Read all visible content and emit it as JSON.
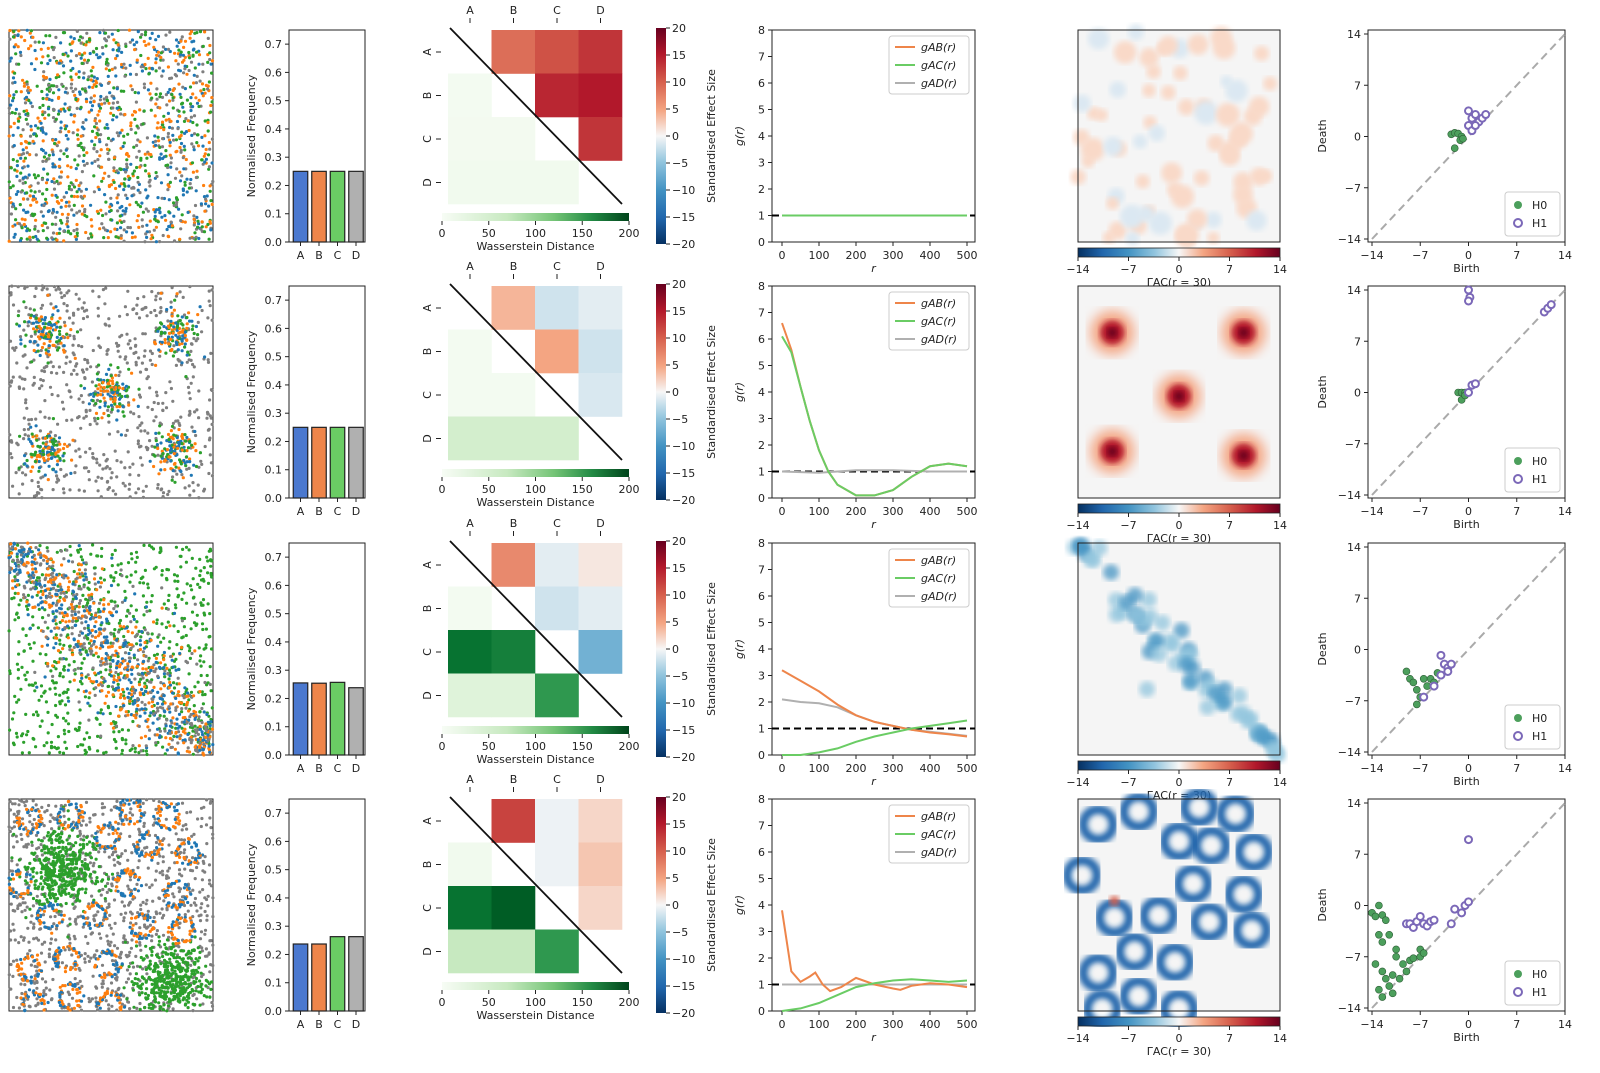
{
  "colors": {
    "A": "#1f77b4",
    "B": "#ff7f0e",
    "C": "#2ca02c",
    "D": "#7f7f7f",
    "barA": "#4a78cf",
    "barB": "#ee854a",
    "barC": "#6acc64",
    "barD": "#b0b0b0",
    "gAB": "#ee854a",
    "gAC": "#6acc64",
    "gAD": "#b0b0b0",
    "h0": "#4c9f5c",
    "h1": "#7b68b8"
  },
  "common": {
    "bar_ylabel": "Normalised Frequency",
    "bar_categories": [
      "A",
      "B",
      "C",
      "D"
    ],
    "bar_yticks": [
      "0.0",
      "0.1",
      "0.2",
      "0.3",
      "0.4",
      "0.5",
      "0.6",
      "0.7"
    ],
    "heat_labels": [
      "A",
      "B",
      "C",
      "D"
    ],
    "heat_cbar_label": "Standardised Effect Size",
    "heat_cbar_ticks": [
      "20",
      "15",
      "10",
      "5",
      "0",
      "−5",
      "−10",
      "−15",
      "−20"
    ],
    "wass_label": "Wasserstein Distance",
    "wass_ticks": [
      "0",
      "50",
      "100",
      "150",
      "200"
    ],
    "g_ylabel": "g(r)",
    "g_xlabel": "r",
    "g_yticks": [
      "0",
      "1",
      "2",
      "3",
      "4",
      "5",
      "6",
      "7",
      "8"
    ],
    "g_xticks": [
      "0",
      "100",
      "200",
      "300",
      "400",
      "500"
    ],
    "g_legend": [
      "gAB(r)",
      "gAC(r)",
      "gAD(r)"
    ],
    "gamma_ticks": [
      "−14",
      "−7",
      "0",
      "7",
      "14"
    ],
    "gamma_label": "ΓAC(r = 30)",
    "pd_xlabel": "Birth",
    "pd_ylabel": "Death",
    "pd_ticks": [
      "−14",
      "−7",
      "0",
      "7",
      "14"
    ],
    "pd_legend": [
      "H0",
      "H1"
    ]
  },
  "chart_data": [
    {
      "type": "scatter",
      "name": "row1-points",
      "pattern": "uniform random",
      "bar": {
        "type": "bar",
        "categories": [
          "A",
          "B",
          "C",
          "D"
        ],
        "values": [
          0.25,
          0.25,
          0.25,
          0.25
        ],
        "ylim": [
          0,
          0.75
        ]
      },
      "heatmap": {
        "type": "heatmap",
        "upper_effect_size": [
          [
            null,
            9,
            11,
            13
          ],
          [
            null,
            null,
            14,
            15
          ],
          [
            null,
            null,
            null,
            13
          ]
        ],
        "lower_wasserstein": [
          [
            null,
            null,
            null
          ],
          [
            5,
            null,
            null
          ],
          [
            6,
            6,
            null
          ],
          [
            8,
            8,
            8
          ]
        ],
        "effect_range": [
          -20,
          20
        ],
        "wasserstein_range": [
          0,
          200
        ]
      },
      "g": {
        "type": "line",
        "xlim": [
          0,
          500
        ],
        "ylim": [
          0,
          8
        ],
        "series": [
          {
            "name": "gAB(r)",
            "x": [
              0,
              100,
              200,
              300,
              400,
              500
            ],
            "values": [
              1,
              1,
              1,
              1,
              1,
              1
            ]
          },
          {
            "name": "gAC(r)",
            "x": [
              0,
              100,
              200,
              300,
              400,
              500
            ],
            "values": [
              1,
              1,
              1,
              1,
              1,
              1
            ]
          },
          {
            "name": "gAD(r)",
            "x": [
              0,
              100,
              200,
              300,
              400,
              500
            ],
            "values": [
              1,
              1,
              1,
              1,
              1,
              1
            ]
          }
        ]
      },
      "gamma": {
        "pattern": "weak noise",
        "range": [
          -14,
          14
        ]
      },
      "pd": {
        "type": "scatter",
        "xlim": [
          -14,
          14
        ],
        "ylim": [
          -14,
          14
        ],
        "h0": [
          [
            -2.5,
            0.3
          ],
          [
            -2,
            0.5
          ],
          [
            -1.5,
            0.4
          ],
          [
            -1,
            0
          ],
          [
            -1.2,
            -0.5
          ],
          [
            -2,
            -1.6
          ],
          [
            -0.8,
            -0.3
          ]
        ],
        "h1": [
          [
            0,
            3.5
          ],
          [
            0.5,
            2.5
          ],
          [
            1,
            3
          ],
          [
            1.5,
            2
          ],
          [
            2,
            2.5
          ],
          [
            0,
            1.5
          ],
          [
            0.5,
            0.8
          ],
          [
            1,
            1.5
          ],
          [
            2.5,
            3
          ]
        ]
      }
    },
    {
      "type": "scatter",
      "name": "row2-points",
      "pattern": "five clusters",
      "bar": {
        "type": "bar",
        "categories": [
          "A",
          "B",
          "C",
          "D"
        ],
        "values": [
          0.25,
          0.25,
          0.25,
          0.25
        ],
        "ylim": [
          0,
          0.75
        ]
      },
      "heatmap": {
        "type": "heatmap",
        "upper_effect_size": [
          [
            null,
            4,
            -2,
            -1
          ],
          [
            null,
            null,
            5,
            -2
          ],
          [
            null,
            null,
            null,
            -1.5
          ]
        ],
        "lower_wasserstein": [
          [
            null,
            null,
            null
          ],
          [
            5,
            null,
            null
          ],
          [
            5,
            5,
            null
          ],
          [
            40,
            40,
            40
          ]
        ],
        "effect_range": [
          -20,
          20
        ],
        "wasserstein_range": [
          0,
          200
        ]
      },
      "g": {
        "type": "line",
        "xlim": [
          0,
          500
        ],
        "ylim": [
          0,
          8
        ],
        "series": [
          {
            "name": "gAB(r)",
            "x": [
              0,
              25,
              50,
              75,
              100,
              125,
              150,
              200,
              250,
              300,
              350,
              400,
              450,
              500
            ],
            "values": [
              6.6,
              5.6,
              4.2,
              2.9,
              1.8,
              1.0,
              0.5,
              0.1,
              0.1,
              0.3,
              0.8,
              1.2,
              1.3,
              1.2
            ]
          },
          {
            "name": "gAC(r)",
            "x": [
              0,
              25,
              50,
              75,
              100,
              125,
              150,
              200,
              250,
              300,
              350,
              400,
              450,
              500
            ],
            "values": [
              6.1,
              5.5,
              4.2,
              2.9,
              1.8,
              1.0,
              0.5,
              0.1,
              0.1,
              0.3,
              0.8,
              1.2,
              1.3,
              1.2
            ]
          },
          {
            "name": "gAD(r)",
            "x": [
              0,
              100,
              200,
              300,
              400,
              500
            ],
            "values": [
              1,
              0.95,
              1.05,
              1.05,
              1.0,
              1.0
            ]
          }
        ]
      },
      "gamma": {
        "pattern": "five red clusters",
        "range": [
          -14,
          14
        ]
      },
      "pd": {
        "type": "scatter",
        "xlim": [
          -14,
          14
        ],
        "ylim": [
          -14,
          14
        ],
        "h0": [
          [
            -1.5,
            0
          ],
          [
            -1,
            0
          ],
          [
            -0.5,
            0
          ],
          [
            -1,
            -1
          ],
          [
            -0.5,
            -0.4
          ]
        ],
        "h1": [
          [
            0,
            14
          ],
          [
            0.2,
            13
          ],
          [
            0,
            12.5
          ],
          [
            11,
            11
          ],
          [
            11.5,
            11.5
          ],
          [
            12,
            12
          ],
          [
            0,
            0
          ],
          [
            0.5,
            1
          ],
          [
            1,
            1.2
          ]
        ]
      }
    },
    {
      "type": "scatter",
      "name": "row3-points",
      "pattern": "diagonal band",
      "bar": {
        "type": "bar",
        "categories": [
          "A",
          "B",
          "C",
          "D"
        ],
        "values": [
          0.255,
          0.254,
          0.257,
          0.238
        ],
        "ylim": [
          0,
          0.75
        ]
      },
      "heatmap": {
        "type": "heatmap",
        "upper_effect_size": [
          [
            null,
            7,
            -1,
            1
          ],
          [
            null,
            null,
            -2,
            -1
          ],
          [
            null,
            null,
            null,
            -7
          ]
        ],
        "lower_wasserstein": [
          [
            null,
            null,
            null
          ],
          [
            5,
            null,
            null
          ],
          [
            170,
            160,
            null
          ],
          [
            30,
            30,
            140
          ]
        ],
        "effect_range": [
          -20,
          20
        ],
        "wasserstein_range": [
          0,
          200
        ]
      },
      "g": {
        "type": "line",
        "xlim": [
          0,
          500
        ],
        "ylim": [
          0,
          8
        ],
        "series": [
          {
            "name": "gAB(r)",
            "x": [
              0,
              50,
              100,
              150,
              200,
              250,
              300,
              350,
              400,
              450,
              500
            ],
            "values": [
              3.2,
              2.8,
              2.4,
              1.9,
              1.5,
              1.25,
              1.1,
              0.95,
              0.85,
              0.78,
              0.7
            ]
          },
          {
            "name": "gAC(r)",
            "x": [
              0,
              50,
              100,
              150,
              200,
              250,
              300,
              350,
              400,
              450,
              500
            ],
            "values": [
              0,
              0,
              0.1,
              0.25,
              0.5,
              0.7,
              0.85,
              1.0,
              1.1,
              1.2,
              1.3
            ]
          },
          {
            "name": "gAD(r)",
            "x": [
              0,
              50,
              100,
              150,
              200,
              250,
              300,
              350,
              400,
              450,
              500
            ],
            "values": [
              2.1,
              2.0,
              1.95,
              1.8,
              1.5,
              1.25,
              1.1,
              0.95,
              0.88,
              0.8,
              0.72
            ]
          }
        ]
      },
      "gamma": {
        "pattern": "blue diagonal band",
        "range": [
          -14,
          14
        ]
      },
      "pd": {
        "type": "scatter",
        "xlim": [
          -14,
          14
        ],
        "ylim": [
          -14,
          14
        ],
        "h0": [
          [
            -9,
            -3
          ],
          [
            -8.5,
            -4
          ],
          [
            -8,
            -4.5
          ],
          [
            -7.5,
            -5.5
          ],
          [
            -7,
            -6.5
          ],
          [
            -7.5,
            -7.5
          ],
          [
            -6.5,
            -4
          ],
          [
            -6,
            -5
          ],
          [
            -5.5,
            -4
          ],
          [
            -5,
            -4.5
          ],
          [
            -4.5,
            -3.2
          ]
        ],
        "h1": [
          [
            -4,
            -0.8
          ],
          [
            -3.5,
            -2
          ],
          [
            -3,
            -2.5
          ],
          [
            -2.5,
            -2
          ],
          [
            -4,
            -3.5
          ],
          [
            -5,
            -5
          ],
          [
            -6.5,
            -6.5
          ],
          [
            -3,
            -3
          ]
        ]
      }
    },
    {
      "type": "scatter",
      "name": "row4-points",
      "pattern": "rings and two green blobs",
      "bar": {
        "type": "bar",
        "categories": [
          "A",
          "B",
          "C",
          "D"
        ],
        "values": [
          0.237,
          0.237,
          0.263,
          0.263
        ],
        "ylim": [
          0,
          0.75
        ]
      },
      "heatmap": {
        "type": "heatmap",
        "upper_effect_size": [
          [
            null,
            12,
            -0.5,
            2
          ],
          [
            null,
            null,
            -0.5,
            3
          ],
          [
            null,
            null,
            null,
            2
          ]
        ],
        "lower_wasserstein": [
          [
            null,
            null,
            null
          ],
          [
            8,
            null,
            null
          ],
          [
            170,
            185,
            null
          ],
          [
            50,
            50,
            140
          ]
        ],
        "effect_range": [
          -20,
          20
        ],
        "wasserstein_range": [
          0,
          200
        ]
      },
      "g": {
        "type": "line",
        "xlim": [
          0,
          500
        ],
        "ylim": [
          0,
          8
        ],
        "series": [
          {
            "name": "gAB(r)",
            "x": [
              0,
              25,
              50,
              75,
              90,
              110,
              130,
              160,
              200,
              250,
              300,
              320,
              350,
              400,
              450,
              500
            ],
            "values": [
              3.8,
              1.5,
              1.1,
              1.3,
              1.45,
              1.0,
              0.75,
              0.9,
              1.25,
              1.0,
              0.85,
              0.8,
              0.95,
              1.05,
              1.0,
              0.9
            ]
          },
          {
            "name": "gAC(r)",
            "x": [
              0,
              50,
              100,
              150,
              200,
              250,
              300,
              350,
              400,
              450,
              500
            ],
            "values": [
              0,
              0.1,
              0.3,
              0.6,
              0.9,
              1.05,
              1.15,
              1.2,
              1.15,
              1.1,
              1.15
            ]
          },
          {
            "name": "gAD(r)",
            "x": [
              0,
              100,
              200,
              300,
              400,
              500
            ],
            "values": [
              1,
              1,
              1,
              1,
              1,
              1
            ]
          }
        ]
      },
      "gamma": {
        "pattern": "blue rings",
        "range": [
          -14,
          14
        ]
      },
      "pd": {
        "type": "scatter",
        "xlim": [
          -14,
          14
        ],
        "ylim": [
          -14,
          14
        ],
        "h0": [
          [
            -14,
            -1
          ],
          [
            -13.5,
            -1.5
          ],
          [
            -13,
            0
          ],
          [
            -12.5,
            -1.3
          ],
          [
            -12,
            -2
          ],
          [
            -13,
            -4
          ],
          [
            -12.5,
            -5
          ],
          [
            -11.5,
            -4
          ],
          [
            -10.5,
            -6
          ],
          [
            -10.5,
            -7
          ],
          [
            -9.5,
            -8
          ],
          [
            -9,
            -9
          ],
          [
            -8.5,
            -7.5
          ],
          [
            -8,
            -7.2
          ],
          [
            -7,
            -6
          ],
          [
            -7,
            -7
          ],
          [
            -6.5,
            -6.5
          ],
          [
            -13.5,
            -8
          ],
          [
            -12.5,
            -9
          ],
          [
            -12,
            -10
          ],
          [
            -11.5,
            -11
          ],
          [
            -13,
            -11.5
          ],
          [
            -12.5,
            -12.5
          ],
          [
            -11,
            -12
          ],
          [
            -11,
            -9.5
          ],
          [
            -10,
            -10
          ]
        ],
        "h1": [
          [
            -9,
            -2.5
          ],
          [
            -8.5,
            -2.5
          ],
          [
            -8,
            -3
          ],
          [
            -7.5,
            -2.2
          ],
          [
            -7,
            -1.5
          ],
          [
            -6.5,
            -2.5
          ],
          [
            -6,
            -2.8
          ],
          [
            -5.5,
            -2.2
          ],
          [
            -5,
            -2
          ],
          [
            -2.5,
            -2.5
          ],
          [
            -2,
            -0.5
          ],
          [
            -1,
            -1
          ],
          [
            -0.5,
            0
          ],
          [
            0,
            0.5
          ],
          [
            0,
            9
          ]
        ]
      }
    }
  ]
}
